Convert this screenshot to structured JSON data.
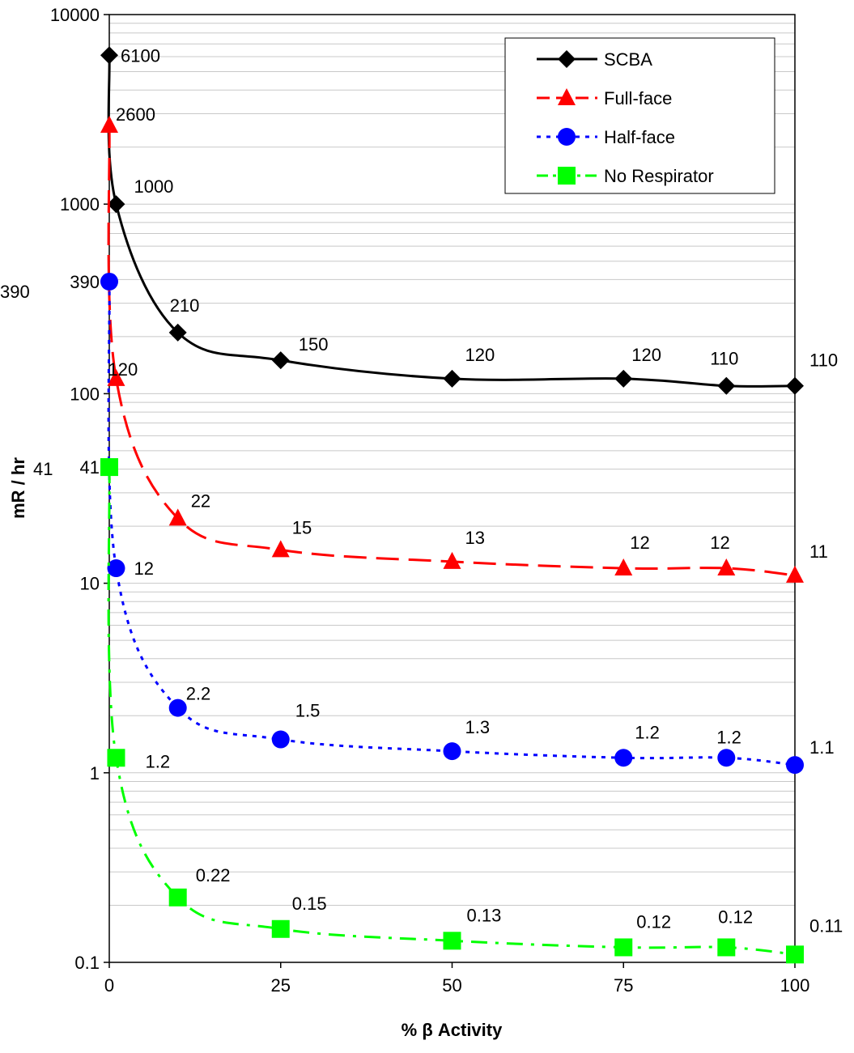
{
  "chart_data": {
    "type": "line",
    "xlabel": "% β Activity",
    "ylabel": "mR / hr",
    "y_scale": "log",
    "xlim": [
      0,
      100
    ],
    "ylim": [
      0.1,
      10000
    ],
    "x_ticks": [
      "0",
      "25",
      "50",
      "75",
      "100"
    ],
    "y_ticks": [
      {
        "value": 10000,
        "label": "10000"
      },
      {
        "value": 1000,
        "label": "1000"
      },
      {
        "value": 390,
        "label": "390"
      },
      {
        "value": 100,
        "label": "100"
      },
      {
        "value": 41,
        "label": "41"
      },
      {
        "value": 10,
        "label": "10"
      },
      {
        "value": 1,
        "label": "1"
      },
      {
        "value": 0.1,
        "label": "0.1"
      }
    ],
    "grid": "horizontal",
    "legend_position": "top-right",
    "series": [
      {
        "name": "SCBA",
        "color": "#000000",
        "marker": "diamond",
        "line_style": "solid",
        "x": [
          0,
          1,
          10,
          25,
          50,
          75,
          90,
          100
        ],
        "y": [
          6100,
          1000,
          210,
          150,
          120,
          120,
          110,
          110
        ],
        "labels": [
          "6100",
          "1000",
          "210",
          "150",
          "120",
          "120",
          "110",
          "110"
        ]
      },
      {
        "name": "Full-face",
        "color": "#ff0000",
        "marker": "triangle",
        "line_style": "dashed",
        "x": [
          0,
          1,
          10,
          25,
          50,
          75,
          90,
          100
        ],
        "y": [
          2600,
          120,
          22,
          15,
          13,
          12,
          12,
          11
        ],
        "labels": [
          "2600",
          "120",
          "22",
          "15",
          "13",
          "12",
          "12",
          "11"
        ]
      },
      {
        "name": "Half-face",
        "color": "#0000ff",
        "marker": "circle",
        "line_style": "dotted",
        "x": [
          0,
          1,
          10,
          25,
          50,
          75,
          90,
          100
        ],
        "y": [
          390,
          12,
          2.2,
          1.5,
          1.3,
          1.2,
          1.2,
          1.1
        ],
        "labels": [
          "390",
          "12",
          "2.2",
          "1.5",
          "1.3",
          "1.2",
          "1.2",
          "1.1"
        ]
      },
      {
        "name": "No Respirator",
        "color": "#00ff00",
        "marker": "square",
        "line_style": "dashdot",
        "x": [
          0,
          1,
          10,
          25,
          50,
          75,
          90,
          100
        ],
        "y": [
          41,
          1.2,
          0.22,
          0.15,
          0.13,
          0.12,
          0.12,
          0.11
        ],
        "labels": [
          "41",
          "1.2",
          "0.22",
          "0.15",
          "0.13",
          "0.12",
          "0.12",
          "0.11"
        ]
      }
    ]
  }
}
